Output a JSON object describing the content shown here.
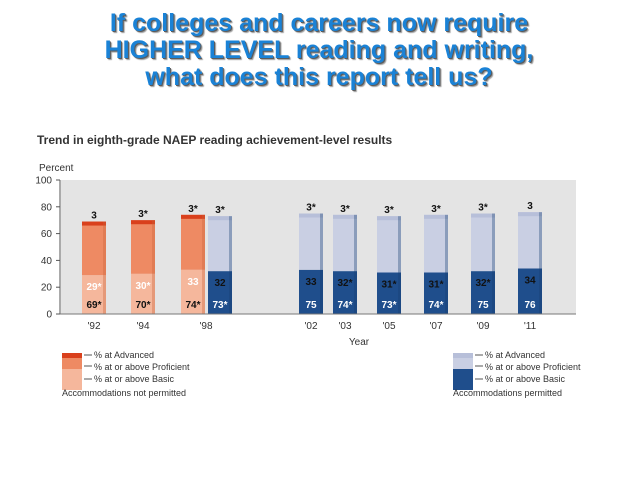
{
  "headline": {
    "line1": "If colleges and careers now require",
    "line2": "HIGHER LEVEL reading and writing,",
    "line3": "what does this report tell us?"
  },
  "chart_data": {
    "type": "bar",
    "title": "Trend in eighth-grade NAEP reading achievement-level results",
    "ylabel": "Percent",
    "xlabel": "Year",
    "ylim": [
      0,
      100
    ],
    "yticks": [
      "0",
      "20",
      "40",
      "60",
      "80",
      "100"
    ],
    "bars": [
      {
        "year": "'92",
        "group": "not_permitted",
        "basic": 69,
        "proficient": 29,
        "advanced": 3,
        "basic_label": "69*",
        "proficient_label": "29*",
        "advanced_label": "3"
      },
      {
        "year": "'94",
        "group": "not_permitted",
        "basic": 70,
        "proficient": 30,
        "advanced": 3,
        "basic_label": "70*",
        "proficient_label": "30*",
        "advanced_label": "3*"
      },
      {
        "year": "'98",
        "group": "not_permitted",
        "basic": 74,
        "proficient": 33,
        "advanced": 3,
        "basic_label": "74*",
        "proficient_label": "33",
        "advanced_label": "3*"
      },
      {
        "year": "'98",
        "group": "permitted",
        "basic": 73,
        "proficient": 32,
        "advanced": 3,
        "basic_label": "73*",
        "proficient_label": "32",
        "advanced_label": "3*"
      },
      {
        "year": "'02",
        "group": "permitted",
        "basic": 75,
        "proficient": 33,
        "advanced": 3,
        "basic_label": "75",
        "proficient_label": "33",
        "advanced_label": "3*"
      },
      {
        "year": "'03",
        "group": "permitted",
        "basic": 74,
        "proficient": 32,
        "advanced": 3,
        "basic_label": "74*",
        "proficient_label": "32*",
        "advanced_label": "3*"
      },
      {
        "year": "'05",
        "group": "permitted",
        "basic": 73,
        "proficient": 31,
        "advanced": 3,
        "basic_label": "73*",
        "proficient_label": "31*",
        "advanced_label": "3*"
      },
      {
        "year": "'07",
        "group": "permitted",
        "basic": 74,
        "proficient": 31,
        "advanced": 3,
        "basic_label": "74*",
        "proficient_label": "31*",
        "advanced_label": "3*"
      },
      {
        "year": "'09",
        "group": "permitted",
        "basic": 75,
        "proficient": 32,
        "advanced": 3,
        "basic_label": "75",
        "proficient_label": "32*",
        "advanced_label": "3*"
      },
      {
        "year": "'11",
        "group": "permitted",
        "basic": 76,
        "proficient": 34,
        "advanced": 3,
        "basic_label": "76",
        "proficient_label": "34",
        "advanced_label": "3"
      }
    ],
    "xticks": [
      "'92",
      "'94",
      "'98",
      "'02",
      "'03",
      "'05",
      "'07",
      "'09",
      "'11"
    ],
    "legend": {
      "left": {
        "advanced": "% at Advanced",
        "proficient": "% at or above Proficient",
        "basic": "% at or above Basic",
        "note": "Accommodations not permitted"
      },
      "right": {
        "advanced": "% at Advanced",
        "proficient": "% at or above Proficient",
        "basic": "% at or above Basic",
        "note": "Accommodations permitted"
      }
    },
    "colors": {
      "np_advanced": "#d9401c",
      "np_proficient": "#ee8a63",
      "np_basic": "#f5b79c",
      "p_advanced": "#b7bfd9",
      "p_proficient": "#c9cfe3",
      "p_basic": "#1f4e8c",
      "plot_bg": "#e4e4e4"
    }
  }
}
